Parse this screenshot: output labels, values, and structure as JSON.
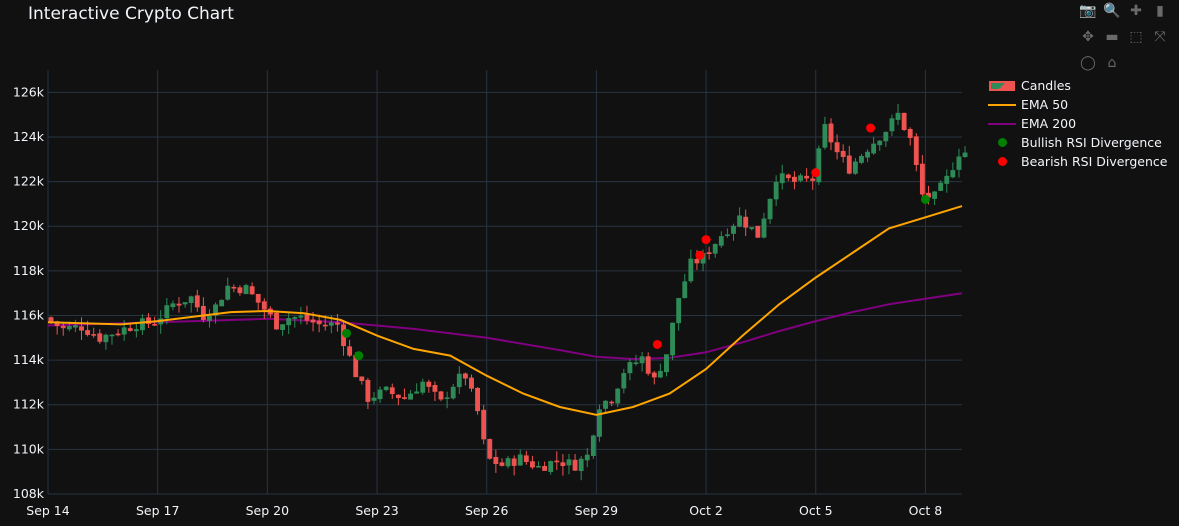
{
  "title": "Interactive Crypto Chart",
  "colors": {
    "background": "#111111",
    "grid": "#283442",
    "up": "#2e8b57",
    "down": "#ef5350",
    "ema50": "#ffa500",
    "ema200": "#800080",
    "bullish": "#008000",
    "bearish": "#ff0000"
  },
  "modebar": [
    {
      "name": "camera-icon",
      "glyph": "📷"
    },
    {
      "name": "zoom-icon",
      "glyph": "🔍"
    },
    {
      "name": "zoom-in-icon",
      "glyph": "✚"
    },
    {
      "name": "bar-chart-icon",
      "glyph": "▮"
    },
    {
      "name": "pan-icon",
      "glyph": "✥"
    },
    {
      "name": "zoom-out-icon",
      "glyph": "▬"
    },
    {
      "name": "box-select-icon",
      "glyph": "⬚"
    },
    {
      "name": "autoscale-icon",
      "glyph": "⤧"
    },
    {
      "name": "lasso-icon",
      "glyph": "◯"
    },
    {
      "name": "home-icon",
      "glyph": "⌂"
    }
  ],
  "legend": [
    {
      "key": "candles",
      "label": "Candles"
    },
    {
      "key": "ema50",
      "label": "EMA 50"
    },
    {
      "key": "ema200",
      "label": "EMA 200"
    },
    {
      "key": "bullish",
      "label": "Bullish RSI Divergence"
    },
    {
      "key": "bearish",
      "label": "Bearish RSI Divergence"
    }
  ],
  "chart_data": {
    "type": "candlestick",
    "title": "Interactive Crypto Chart",
    "x_range": [
      "2025-09-14",
      "2025-10-09"
    ],
    "y_range": [
      108000,
      127000
    ],
    "x_ticks": [
      {
        "date": "2025-09-14",
        "label": "Sep 14"
      },
      {
        "date": "2025-09-17",
        "label": "Sep 17"
      },
      {
        "date": "2025-09-20",
        "label": "Sep 20"
      },
      {
        "date": "2025-09-23",
        "label": "Sep 23"
      },
      {
        "date": "2025-09-26",
        "label": "Sep 26"
      },
      {
        "date": "2025-09-29",
        "label": "Sep 29"
      },
      {
        "date": "2025-10-02",
        "label": "Oct 2"
      },
      {
        "date": "2025-10-05",
        "label": "Oct 5"
      },
      {
        "date": "2025-10-08",
        "label": "Oct 8"
      }
    ],
    "y_ticks": [
      {
        "value": 108000,
        "label": "108k"
      },
      {
        "value": 110000,
        "label": "110k"
      },
      {
        "value": 112000,
        "label": "112k"
      },
      {
        "value": 114000,
        "label": "114k"
      },
      {
        "value": 116000,
        "label": "116k"
      },
      {
        "value": 118000,
        "label": "118k"
      },
      {
        "value": 120000,
        "label": "120k"
      },
      {
        "value": 122000,
        "label": "122k"
      },
      {
        "value": 124000,
        "label": "124k"
      },
      {
        "value": 126000,
        "label": "126k"
      }
    ],
    "candle_interval_hours": 4,
    "price_path": [
      [
        "2025-09-14 00:00",
        115900
      ],
      [
        "2025-09-14 12:00",
        115400
      ],
      [
        "2025-09-15 00:00",
        115500
      ],
      [
        "2025-09-15 12:00",
        115000
      ],
      [
        "2025-09-16 00:00",
        115300
      ],
      [
        "2025-09-16 12:00",
        115600
      ],
      [
        "2025-09-17 00:00",
        115700
      ],
      [
        "2025-09-17 12:00",
        116500
      ],
      [
        "2025-09-18 00:00",
        116800
      ],
      [
        "2025-09-18 08:00",
        116000
      ],
      [
        "2025-09-18 16:00",
        116400
      ],
      [
        "2025-09-19 00:00",
        117300
      ],
      [
        "2025-09-19 12:00",
        117200
      ],
      [
        "2025-09-20 00:00",
        116300
      ],
      [
        "2025-09-20 08:00",
        115600
      ],
      [
        "2025-09-20 16:00",
        115900
      ],
      [
        "2025-09-21 00:00",
        115900
      ],
      [
        "2025-09-21 12:00",
        115600
      ],
      [
        "2025-09-22 00:00",
        115600
      ],
      [
        "2025-09-22 06:00",
        114500
      ],
      [
        "2025-09-22 12:00",
        113400
      ],
      [
        "2025-09-22 20:00",
        112300
      ],
      [
        "2025-09-23 08:00",
        112600
      ],
      [
        "2025-09-23 20:00",
        112300
      ],
      [
        "2025-09-24 08:00",
        113000
      ],
      [
        "2025-09-24 20:00",
        112100
      ],
      [
        "2025-09-25 06:00",
        113100
      ],
      [
        "2025-09-25 12:00",
        113300
      ],
      [
        "2025-09-25 20:00",
        111700
      ],
      [
        "2025-09-26 02:00",
        109600
      ],
      [
        "2025-09-26 12:00",
        109300
      ],
      [
        "2025-09-27 00:00",
        109600
      ],
      [
        "2025-09-27 12:00",
        109200
      ],
      [
        "2025-09-28 00:00",
        109500
      ],
      [
        "2025-09-28 12:00",
        109300
      ],
      [
        "2025-09-28 20:00",
        109700
      ],
      [
        "2025-09-29 04:00",
        112000
      ],
      [
        "2025-09-29 12:00",
        112300
      ],
      [
        "2025-09-29 20:00",
        113500
      ],
      [
        "2025-09-30 08:00",
        114100
      ],
      [
        "2025-09-30 16:00",
        113100
      ],
      [
        "2025-10-01 00:00",
        114300
      ],
      [
        "2025-10-01 08:00",
        116800
      ],
      [
        "2025-10-01 16:00",
        118300
      ],
      [
        "2025-10-02 00:00",
        118600
      ],
      [
        "2025-10-02 12:00",
        119600
      ],
      [
        "2025-10-03 00:00",
        120400
      ],
      [
        "2025-10-03 12:00",
        119600
      ],
      [
        "2025-10-04 00:00",
        122200
      ],
      [
        "2025-10-04 12:00",
        122000
      ],
      [
        "2025-10-05 00:00",
        122100
      ],
      [
        "2025-10-05 08:00",
        124400
      ],
      [
        "2025-10-05 16:00",
        123300
      ],
      [
        "2025-10-06 00:00",
        122600
      ],
      [
        "2025-10-06 12:00",
        123500
      ],
      [
        "2025-10-07 00:00",
        124300
      ],
      [
        "2025-10-07 08:00",
        125000
      ],
      [
        "2025-10-07 16:00",
        123900
      ],
      [
        "2025-10-08 00:00",
        121400
      ],
      [
        "2025-10-08 08:00",
        121300
      ],
      [
        "2025-10-08 16:00",
        122100
      ],
      [
        "2025-10-09 00:00",
        123300
      ]
    ],
    "ema50": [
      [
        "2025-09-14 00:00",
        115700
      ],
      [
        "2025-09-16 00:00",
        115600
      ],
      [
        "2025-09-17 00:00",
        115750
      ],
      [
        "2025-09-18 00:00",
        115950
      ],
      [
        "2025-09-19 00:00",
        116150
      ],
      [
        "2025-09-20 00:00",
        116200
      ],
      [
        "2025-09-21 00:00",
        116100
      ],
      [
        "2025-09-22 00:00",
        115800
      ],
      [
        "2025-09-23 00:00",
        115100
      ],
      [
        "2025-09-24 00:00",
        114500
      ],
      [
        "2025-09-25 00:00",
        114200
      ],
      [
        "2025-09-26 00:00",
        113300
      ],
      [
        "2025-09-27 00:00",
        112500
      ],
      [
        "2025-09-28 00:00",
        111900
      ],
      [
        "2025-09-29 00:00",
        111550
      ],
      [
        "2025-09-30 00:00",
        111900
      ],
      [
        "2025-10-01 00:00",
        112500
      ],
      [
        "2025-10-02 00:00",
        113600
      ],
      [
        "2025-10-03 00:00",
        115100
      ],
      [
        "2025-10-04 00:00",
        116500
      ],
      [
        "2025-10-05 00:00",
        117700
      ],
      [
        "2025-10-06 00:00",
        118800
      ],
      [
        "2025-10-07 00:00",
        119900
      ],
      [
        "2025-10-08 00:00",
        120400
      ],
      [
        "2025-10-09 00:00",
        120900
      ]
    ],
    "ema200": [
      [
        "2025-09-14 00:00",
        115550
      ],
      [
        "2025-09-16 00:00",
        115650
      ],
      [
        "2025-09-18 00:00",
        115750
      ],
      [
        "2025-09-20 00:00",
        115850
      ],
      [
        "2025-09-22 00:00",
        115700
      ],
      [
        "2025-09-24 00:00",
        115400
      ],
      [
        "2025-09-26 00:00",
        115000
      ],
      [
        "2025-09-28 00:00",
        114450
      ],
      [
        "2025-09-29 00:00",
        114150
      ],
      [
        "2025-09-30 00:00",
        114050
      ],
      [
        "2025-10-01 00:00",
        114100
      ],
      [
        "2025-10-02 00:00",
        114350
      ],
      [
        "2025-10-03 00:00",
        114800
      ],
      [
        "2025-10-04 00:00",
        115300
      ],
      [
        "2025-10-05 00:00",
        115750
      ],
      [
        "2025-10-06 00:00",
        116150
      ],
      [
        "2025-10-07 00:00",
        116500
      ],
      [
        "2025-10-08 00:00",
        116750
      ],
      [
        "2025-10-09 00:00",
        117000
      ]
    ],
    "bullish_divergence": [
      {
        "date": "2025-09-22 04:00",
        "value": 115200
      },
      {
        "date": "2025-09-22 12:00",
        "value": 114200
      },
      {
        "date": "2025-10-08 00:00",
        "value": 121200
      }
    ],
    "bearish_divergence": [
      {
        "date": "2025-09-30 16:00",
        "value": 114700
      },
      {
        "date": "2025-10-01 20:00",
        "value": 118700
      },
      {
        "date": "2025-10-02 00:00",
        "value": 119400
      },
      {
        "date": "2025-10-05 00:00",
        "value": 122400
      },
      {
        "date": "2025-10-06 12:00",
        "value": 124400
      }
    ],
    "grid": true,
    "legend_position": "right"
  }
}
